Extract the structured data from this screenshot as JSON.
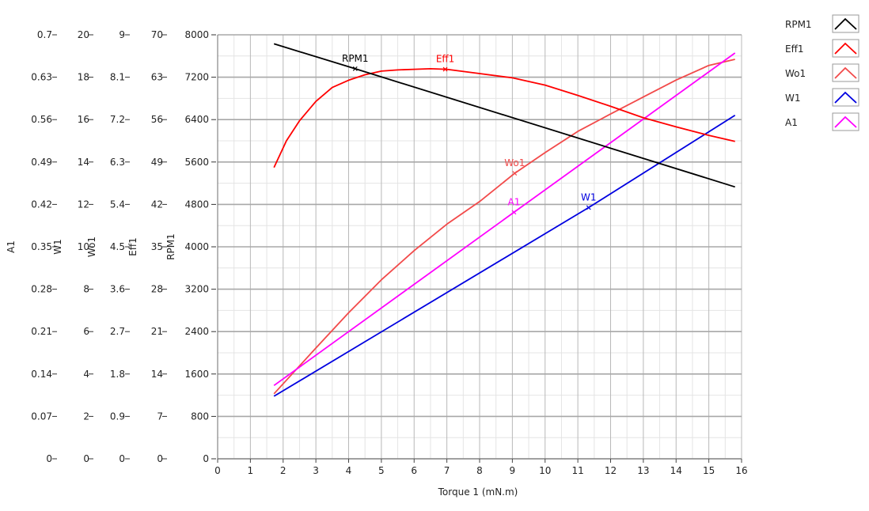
{
  "chart_data": {
    "type": "line",
    "xlabel": "Torque 1 (mN.m)",
    "xlim": [
      0,
      16
    ],
    "x_ticks": [
      "0",
      "1",
      "2",
      "3",
      "4",
      "5",
      "6",
      "7",
      "8",
      "9",
      "10",
      "11",
      "12",
      "13",
      "14",
      "15",
      "16"
    ],
    "grid": true,
    "legend_placement": "top-right",
    "axes": [
      {
        "id": "A1",
        "label": "A1",
        "range": [
          0,
          0.7
        ],
        "ticks": [
          "0",
          "0.07",
          "0.14",
          "0.21",
          "0.28",
          "0.35",
          "0.42",
          "0.49",
          "0.56",
          "0.63",
          "0.7"
        ]
      },
      {
        "id": "W1",
        "label": "W1",
        "range": [
          0,
          20
        ],
        "ticks": [
          "0",
          "2",
          "4",
          "6",
          "8",
          "10",
          "12",
          "14",
          "16",
          "18",
          "20"
        ]
      },
      {
        "id": "Wo1",
        "label": "Wo1",
        "range": [
          0,
          9
        ],
        "ticks": [
          "0",
          "0.9",
          "1.8",
          "2.7",
          "3.6",
          "4.5",
          "5.4",
          "6.3",
          "7.2",
          "8.1",
          "9"
        ]
      },
      {
        "id": "Eff1",
        "label": "Eff1",
        "range": [
          0,
          70
        ],
        "ticks": [
          "0",
          "7",
          "14",
          "21",
          "28",
          "35",
          "42",
          "49",
          "56",
          "63",
          "70"
        ]
      },
      {
        "id": "RPM1",
        "label": "RPM1",
        "range": [
          0,
          8000
        ],
        "ticks": [
          "0",
          "800",
          "1600",
          "2400",
          "3200",
          "4000",
          "4800",
          "5600",
          "6400",
          "7200",
          "8000"
        ]
      }
    ],
    "series": [
      {
        "name": "RPM1",
        "axis": "RPM1",
        "color": "#000000",
        "x": [
          1.72,
          4.2,
          15.8
        ],
        "y": [
          7830,
          7360,
          5130
        ],
        "marker_x": 4.2,
        "label_at": [
          4.2,
          7360
        ]
      },
      {
        "name": "Eff1",
        "axis": "Eff1",
        "color": "#ff0000",
        "x": [
          1.72,
          2.1,
          2.5,
          3.0,
          3.5,
          4.0,
          4.5,
          5.0,
          5.5,
          6.0,
          6.5,
          7.0,
          8.0,
          9.0,
          10.0,
          11.0,
          12.0,
          13.0,
          14.0,
          15.0,
          15.8
        ],
        "y": [
          48.1,
          52.5,
          55.8,
          59.0,
          61.3,
          62.5,
          63.4,
          64.0,
          64.2,
          64.3,
          64.4,
          64.3,
          63.6,
          62.9,
          61.7,
          60.0,
          58.2,
          56.3,
          54.8,
          53.4,
          52.4
        ],
        "marker_x": 6.95,
        "label_at": [
          6.95,
          64.3
        ]
      },
      {
        "name": "Wo1",
        "axis": "Wo1",
        "color": "#f24a4a",
        "x": [
          1.72,
          3.0,
          4.0,
          5.0,
          6.0,
          7.0,
          8.0,
          9.07,
          10.0,
          11.0,
          12.0,
          13.0,
          14.0,
          15.0,
          15.8
        ],
        "y": [
          1.38,
          2.35,
          3.1,
          3.8,
          4.42,
          4.98,
          5.46,
          6.06,
          6.5,
          6.95,
          7.32,
          7.68,
          8.04,
          8.35,
          8.48
        ],
        "marker_x": 9.07,
        "label_at": [
          9.07,
          6.06
        ]
      },
      {
        "name": "W1",
        "axis": "W1",
        "color": "#0000e0",
        "x": [
          1.72,
          11.33,
          15.8
        ],
        "y": [
          2.95,
          11.85,
          16.2
        ],
        "marker_x": 11.33,
        "label_at": [
          11.33,
          11.85
        ]
      },
      {
        "name": "A1",
        "axis": "A1",
        "color": "#ff00ff",
        "x": [
          1.72,
          9.05,
          15.8
        ],
        "y": [
          0.121,
          0.407,
          0.67
        ],
        "marker_x": 9.05,
        "label_at": [
          9.05,
          0.407
        ]
      }
    ]
  }
}
